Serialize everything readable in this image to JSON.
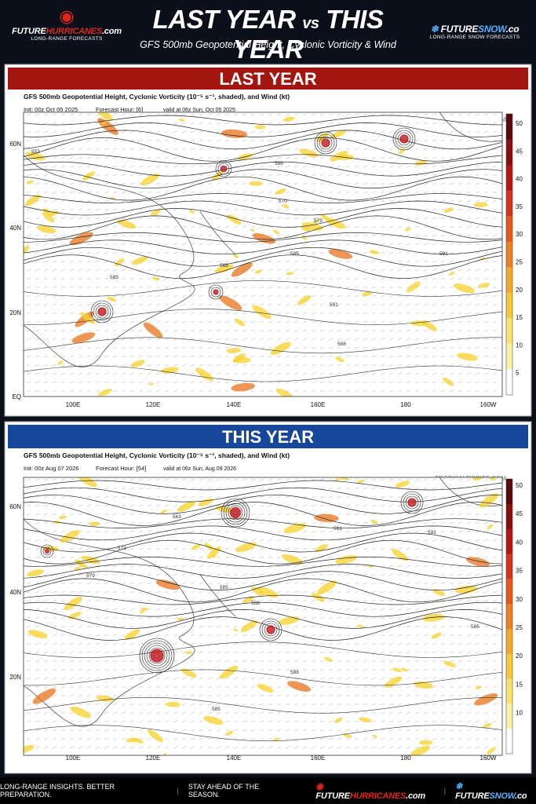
{
  "header": {
    "left_logo": {
      "brand_a": "FUTURE",
      "brand_b": "HURRICANES",
      "brand_c": ".com",
      "tagline": "LONG-RANGE FORECASTS"
    },
    "title_a": "LAST YEAR",
    "title_vs": "vs",
    "title_b": "THIS YEAR",
    "subtitle": "GFS 500mb Geopotential Height, Cyclonic Vorticity & Wind",
    "right_logo": {
      "brand_a": "FUTURE",
      "brand_b": "SNOW",
      "brand_c": ".co",
      "tagline": "LONG-RANGE SNOW FORECASTS"
    }
  },
  "panels": [
    {
      "banner": "LAST YEAR",
      "title": "GFS 500mb Geopotential Height, Cyclonic Vorticity (10⁻⁵ s⁻¹, shaded), and Wind (kt)",
      "init": "Init: 00z Oct 05 2025",
      "forecast": "Forecast Hour: [6]",
      "valid": "valid at 06z Sun, Oct 05 2025",
      "credit": "TROPICALTIDBITS.COM",
      "lat_labels": [
        "60N",
        "40N",
        "20N",
        "EQ"
      ],
      "lon_labels": [
        "100E",
        "120E",
        "140E",
        "160E",
        "180",
        "160W"
      ],
      "colorbar": [
        50,
        45,
        40,
        35,
        30,
        25,
        20,
        15,
        10,
        5
      ],
      "contour_labels": [
        "553",
        "566",
        "570",
        "579",
        "585",
        "588",
        "591",
        "588",
        "585",
        "591"
      ]
    },
    {
      "banner": "THIS YEAR",
      "title": "GFS 500mb Geopotential Height, Cyclonic Vorticity (10⁻⁵ s⁻¹, shaded), and Wind (kt)",
      "init": "Init: 00z Aug 07 2026",
      "forecast": "Forecast Hour: [54]",
      "valid": "valid at 06z Sun, Aug 09 2026",
      "credit": "TROPICALTIDBITS.COM",
      "lat_labels": [
        "60N",
        "40N",
        "20N"
      ],
      "lon_labels": [
        "100E",
        "120E",
        "140E",
        "160E",
        "180",
        "160W"
      ],
      "colorbar": [
        50,
        45,
        40,
        35,
        30,
        25,
        20,
        15,
        10
      ],
      "contour_labels": [
        "563",
        "573",
        "579",
        "585",
        "588",
        "591",
        "585",
        "588",
        "591",
        "585"
      ]
    }
  ],
  "footer": {
    "slogan_a": "LONG-RANGE INSIGHTS. BETTER PREPARATION.",
    "slogan_b": "STAY AHEAD OF THE SEASON.",
    "logo_a": {
      "brand_a": "FUTURE",
      "brand_b": "HURRICANES",
      "brand_c": ".com"
    },
    "logo_b": {
      "brand_a": "FUTURE",
      "brand_b": "SNOW",
      "brand_c": ".co"
    }
  }
}
